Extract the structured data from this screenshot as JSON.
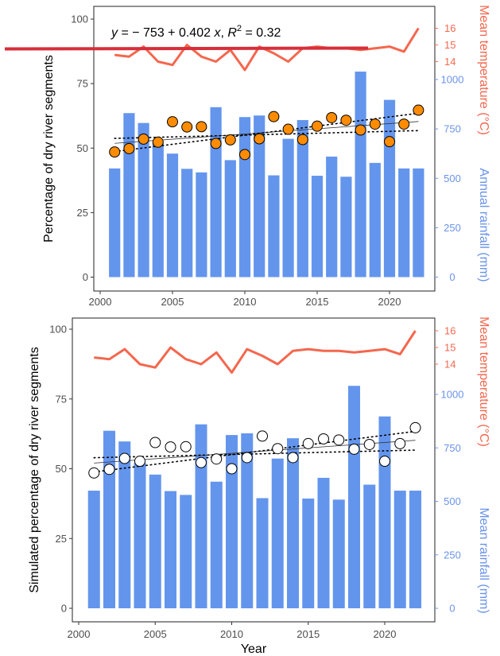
{
  "colors": {
    "bar": "#6495ED",
    "temp_line": "#F4674E",
    "temp_axis": "#F4674E",
    "rain_axis": "#6A93E9",
    "point_top": "#FF8C00",
    "point_bottom": "#FFFFFF",
    "overlay_line": "#D62F3A"
  },
  "chart_data": [
    {
      "type": "bar",
      "years": [
        2001,
        2002,
        2003,
        2004,
        2005,
        2006,
        2007,
        2008,
        2009,
        2010,
        2011,
        2012,
        2013,
        2014,
        2015,
        2016,
        2017,
        2018,
        2019,
        2020,
        2021,
        2022
      ],
      "rainfall": [
        550,
        830,
        780,
        680,
        625,
        548,
        530,
        860,
        592,
        810,
        818,
        515,
        700,
        795,
        513,
        610,
        508,
        1040,
        578,
        897,
        550,
        550
      ],
      "temperature": [
        14.4,
        14.3,
        14.9,
        14.0,
        13.8,
        15.0,
        14.3,
        14.0,
        14.7,
        13.5,
        14.9,
        14.5,
        14.0,
        14.8,
        14.9,
        14.8,
        14.8,
        14.7,
        14.8,
        14.9,
        14.6,
        16.0
      ],
      "percentage": [
        48.5,
        49.8,
        53.5,
        52.3,
        60.2,
        58.2,
        58.3,
        51.8,
        53.2,
        47.5,
        53.6,
        62.2,
        57.3,
        53.3,
        58.5,
        61.8,
        60.8,
        57.0,
        59.3,
        52.5,
        59.3,
        64.7
      ],
      "ylabel_left": "Percentage of dry river segments",
      "ylabel_right_1": "Mean temperature (°C)",
      "ylabel_right_2": "Annual rainfall (mm)",
      "equation": {
        "y": "y",
        "rest": " = − 753 + 0.402 ",
        "x": "x",
        "comma": ", ",
        "r": "R",
        "sup": "2",
        "val": " = 0.32"
      },
      "left_ticks": [
        "0",
        "25",
        "50",
        "75",
        "100"
      ],
      "rain_ticks": [
        "0",
        "250",
        "500",
        "750",
        "1000"
      ],
      "temp_ticks": [
        "14",
        "15",
        "16"
      ],
      "x_ticks": [
        "2000",
        "2005",
        "2010",
        "2015",
        "2020"
      ],
      "ylim": [
        0,
        100
      ],
      "rain_lim": [
        0,
        1000
      ],
      "fit": {
        "slope": 0.402,
        "intercept": -753
      },
      "grid": false
    },
    {
      "type": "bar",
      "years": [
        2001,
        2002,
        2003,
        2004,
        2005,
        2006,
        2007,
        2008,
        2009,
        2010,
        2011,
        2012,
        2013,
        2014,
        2015,
        2016,
        2017,
        2018,
        2019,
        2020,
        2021,
        2022
      ],
      "rainfall": [
        550,
        830,
        780,
        680,
        625,
        548,
        530,
        860,
        592,
        810,
        818,
        515,
        700,
        795,
        513,
        610,
        508,
        1040,
        578,
        897,
        550,
        550
      ],
      "temperature": [
        14.4,
        14.3,
        14.9,
        14.0,
        13.8,
        15.0,
        14.3,
        14.0,
        14.7,
        13.5,
        14.9,
        14.5,
        14.0,
        14.8,
        14.9,
        14.8,
        14.8,
        14.7,
        14.8,
        14.9,
        14.6,
        16.0
      ],
      "percentage": [
        48.5,
        49.8,
        53.7,
        52.7,
        59.4,
        57.8,
        57.9,
        52.2,
        53.5,
        50.0,
        54.0,
        61.7,
        57.2,
        54.0,
        59.0,
        60.7,
        60.3,
        57.0,
        58.7,
        52.7,
        59.0,
        64.7
      ],
      "ylabel_left": "Simulated percentage of dry river segments",
      "ylabel_right_1": "Mean temperature (°C)",
      "ylabel_right_2": "Mean rainfall (mm)",
      "xlabel": "Year",
      "left_ticks": [
        "0",
        "25",
        "50",
        "75",
        "100"
      ],
      "rain_ticks": [
        "0",
        "250",
        "500",
        "750",
        "1000"
      ],
      "temp_ticks": [
        "14",
        "15",
        "16"
      ],
      "x_ticks": [
        "2000",
        "2005",
        "2010",
        "2015",
        "2020"
      ],
      "ylim": [
        0,
        100
      ],
      "rain_lim": [
        0,
        1000
      ],
      "grid": false
    }
  ]
}
